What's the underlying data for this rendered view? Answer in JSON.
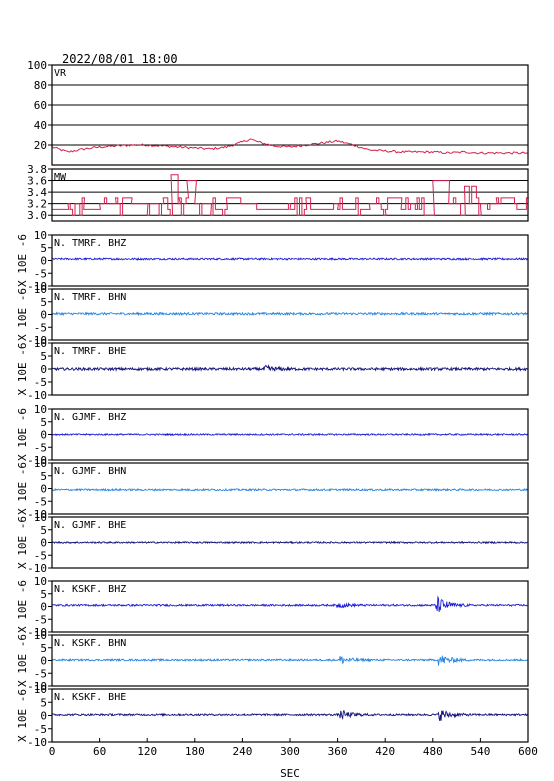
{
  "header": {
    "datetime": "2022/08/01 18:00"
  },
  "chart_data": {
    "type": "line",
    "xlabel": "SEC",
    "xlim": [
      0,
      600
    ],
    "xticks": [
      "0",
      "60",
      "120",
      "180",
      "240",
      "300",
      "360",
      "420",
      "480",
      "540",
      "600"
    ],
    "seismo_ylabel": "X 10E -6",
    "panels": [
      {
        "name": "VR",
        "kind": "vr",
        "color": "#d6214f",
        "ylim": [
          0,
          100
        ],
        "yticks": [
          "20",
          "40",
          "60",
          "80",
          "100"
        ],
        "x": [
          0,
          20,
          40,
          60,
          80,
          100,
          120,
          140,
          160,
          180,
          200,
          220,
          240,
          250,
          260,
          280,
          300,
          320,
          340,
          360,
          380,
          400,
          420,
          440,
          460,
          480,
          500,
          520,
          540,
          560,
          580,
          600
        ],
        "values": [
          18,
          13,
          16,
          18,
          19,
          20,
          20,
          19,
          18,
          17,
          16,
          18,
          23,
          26,
          23,
          19,
          18,
          20,
          22,
          24,
          20,
          15,
          14,
          13,
          13,
          13,
          12,
          13,
          12,
          12,
          12,
          12
        ]
      },
      {
        "name": "MW",
        "kind": "mw",
        "color": "#d6214f",
        "ylim": [
          2.9,
          3.8
        ],
        "yticks": [
          "3.0",
          "3.2",
          "3.4",
          "3.6",
          "3.8"
        ],
        "x": [
          0,
          20,
          40,
          60,
          80,
          100,
          120,
          140,
          150,
          160,
          170,
          180,
          200,
          220,
          240,
          260,
          280,
          300,
          320,
          340,
          360,
          380,
          400,
          420,
          440,
          460,
          470,
          480,
          500,
          520,
          540,
          560,
          580,
          600
        ],
        "values": [
          3.1,
          3.2,
          3.1,
          3.2,
          3.3,
          3.2,
          3.2,
          3.3,
          3.7,
          3.3,
          3.6,
          3.2,
          3.1,
          3.3,
          3.2,
          3.1,
          3.1,
          3.1,
          3.1,
          3.1,
          3.1,
          3.1,
          3.2,
          3.3,
          3.1,
          3.3,
          3.0,
          3.6,
          3.2,
          3.5,
          3.2,
          3.3,
          3.1,
          3.6
        ]
      },
      {
        "name": "N. TMRF. BHZ",
        "kind": "seis",
        "color": "#1f1fd6",
        "ylim": [
          -10,
          10
        ],
        "yticks": [
          "10",
          "5",
          "0",
          "-5",
          "-10"
        ],
        "baseline": 0.6,
        "noise": 0.35,
        "events": []
      },
      {
        "name": "N. TMRF. BHN",
        "kind": "seis",
        "color": "#2a86e0",
        "ylim": [
          -10,
          10
        ],
        "yticks": [
          "10",
          "5",
          "0",
          "-5",
          "-10"
        ],
        "baseline": 0.3,
        "noise": 0.45,
        "events": []
      },
      {
        "name": "N. TMRF. BHE",
        "kind": "seis",
        "color": "#12127a",
        "ylim": [
          -10,
          10
        ],
        "yticks": [
          "10",
          "5",
          "0",
          "-5",
          "-10"
        ],
        "baseline": 0.0,
        "noise": 0.5,
        "events": [
          {
            "t": 270,
            "amp": 1.0
          }
        ]
      },
      {
        "name": "N. GJMF. BHZ",
        "kind": "seis",
        "color": "#1f1fd6",
        "ylim": [
          -10,
          10
        ],
        "yticks": [
          "10",
          "5",
          "0",
          "-5",
          "-10"
        ],
        "baseline": 0.0,
        "noise": 0.3,
        "events": []
      },
      {
        "name": "N. GJMF. BHN",
        "kind": "seis",
        "color": "#2a86e0",
        "ylim": [
          -10,
          10
        ],
        "yticks": [
          "10",
          "5",
          "0",
          "-5",
          "-10"
        ],
        "baseline": -0.5,
        "noise": 0.35,
        "events": []
      },
      {
        "name": "N. GJMF. BHE",
        "kind": "seis",
        "color": "#12127a",
        "ylim": [
          -10,
          10
        ],
        "yticks": [
          "10",
          "5",
          "0",
          "-5",
          "-10"
        ],
        "baseline": 0.0,
        "noise": 0.3,
        "events": []
      },
      {
        "name": "N. KSKF. BHZ",
        "kind": "seis",
        "color": "#1f1fd6",
        "ylim": [
          -10,
          10
        ],
        "yticks": [
          "10",
          "5",
          "0",
          "-5",
          "-10"
        ],
        "baseline": 0.5,
        "noise": 0.35,
        "events": [
          {
            "t": 487,
            "amp": 3.0
          },
          {
            "t": 362,
            "amp": 0.8
          }
        ]
      },
      {
        "name": "N. KSKF. BHN",
        "kind": "seis",
        "color": "#2a86e0",
        "ylim": [
          -10,
          10
        ],
        "yticks": [
          "10",
          "5",
          "0",
          "-5",
          "-10"
        ],
        "baseline": 0.2,
        "noise": 0.35,
        "events": [
          {
            "t": 490,
            "amp": 2.0
          },
          {
            "t": 364,
            "amp": 1.5
          }
        ]
      },
      {
        "name": "N. KSKF. BHE",
        "kind": "seis",
        "color": "#12127a",
        "ylim": [
          -10,
          10
        ],
        "yticks": [
          "10",
          "5",
          "0",
          "-5",
          "-10"
        ],
        "baseline": 0.3,
        "noise": 0.35,
        "events": [
          {
            "t": 490,
            "amp": 2.0
          },
          {
            "t": 366,
            "amp": 1.4
          }
        ]
      }
    ]
  }
}
